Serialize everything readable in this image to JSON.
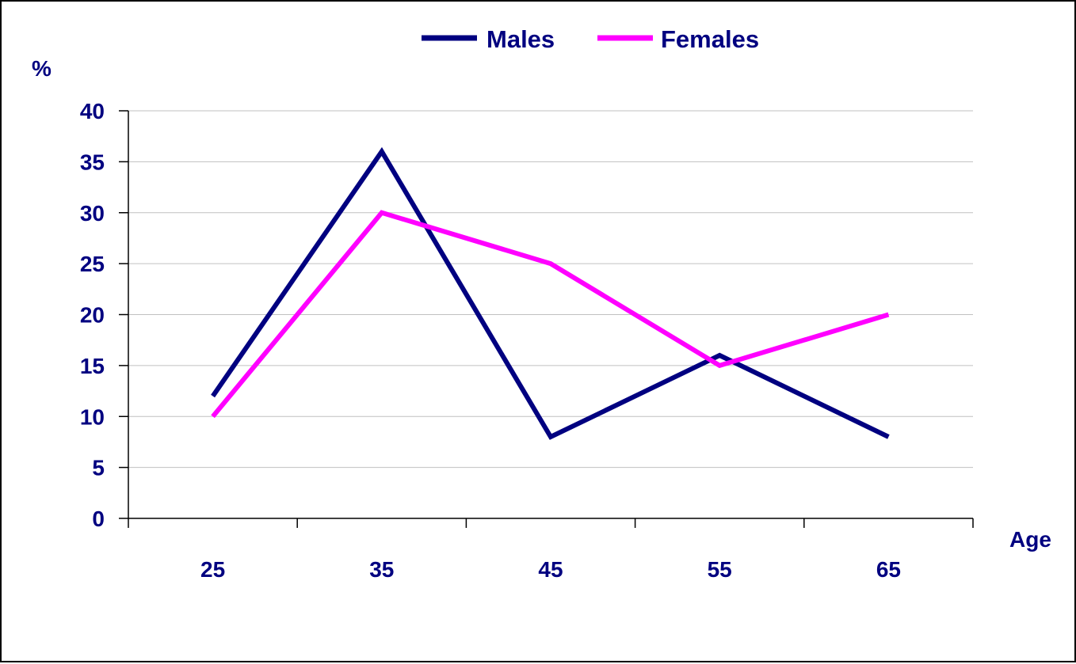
{
  "chart_data": {
    "type": "line",
    "title": "",
    "xlabel": "Age",
    "ylabel": "%",
    "categories": [
      "25",
      "35",
      "45",
      "55",
      "65"
    ],
    "ylim": [
      0,
      40
    ],
    "yticks": [
      0,
      5,
      10,
      15,
      20,
      25,
      30,
      35,
      40
    ],
    "grid": true,
    "legend_position": "top-center",
    "series": [
      {
        "name": "Males",
        "color": "#000080",
        "values": [
          12,
          36,
          8,
          16,
          8
        ]
      },
      {
        "name": "Females",
        "color": "#ff00ff",
        "values": [
          10,
          30,
          25,
          15,
          20
        ]
      }
    ]
  },
  "colors": {
    "text": "#000080",
    "grid": "#c0c0c0",
    "axis": "#000000"
  }
}
